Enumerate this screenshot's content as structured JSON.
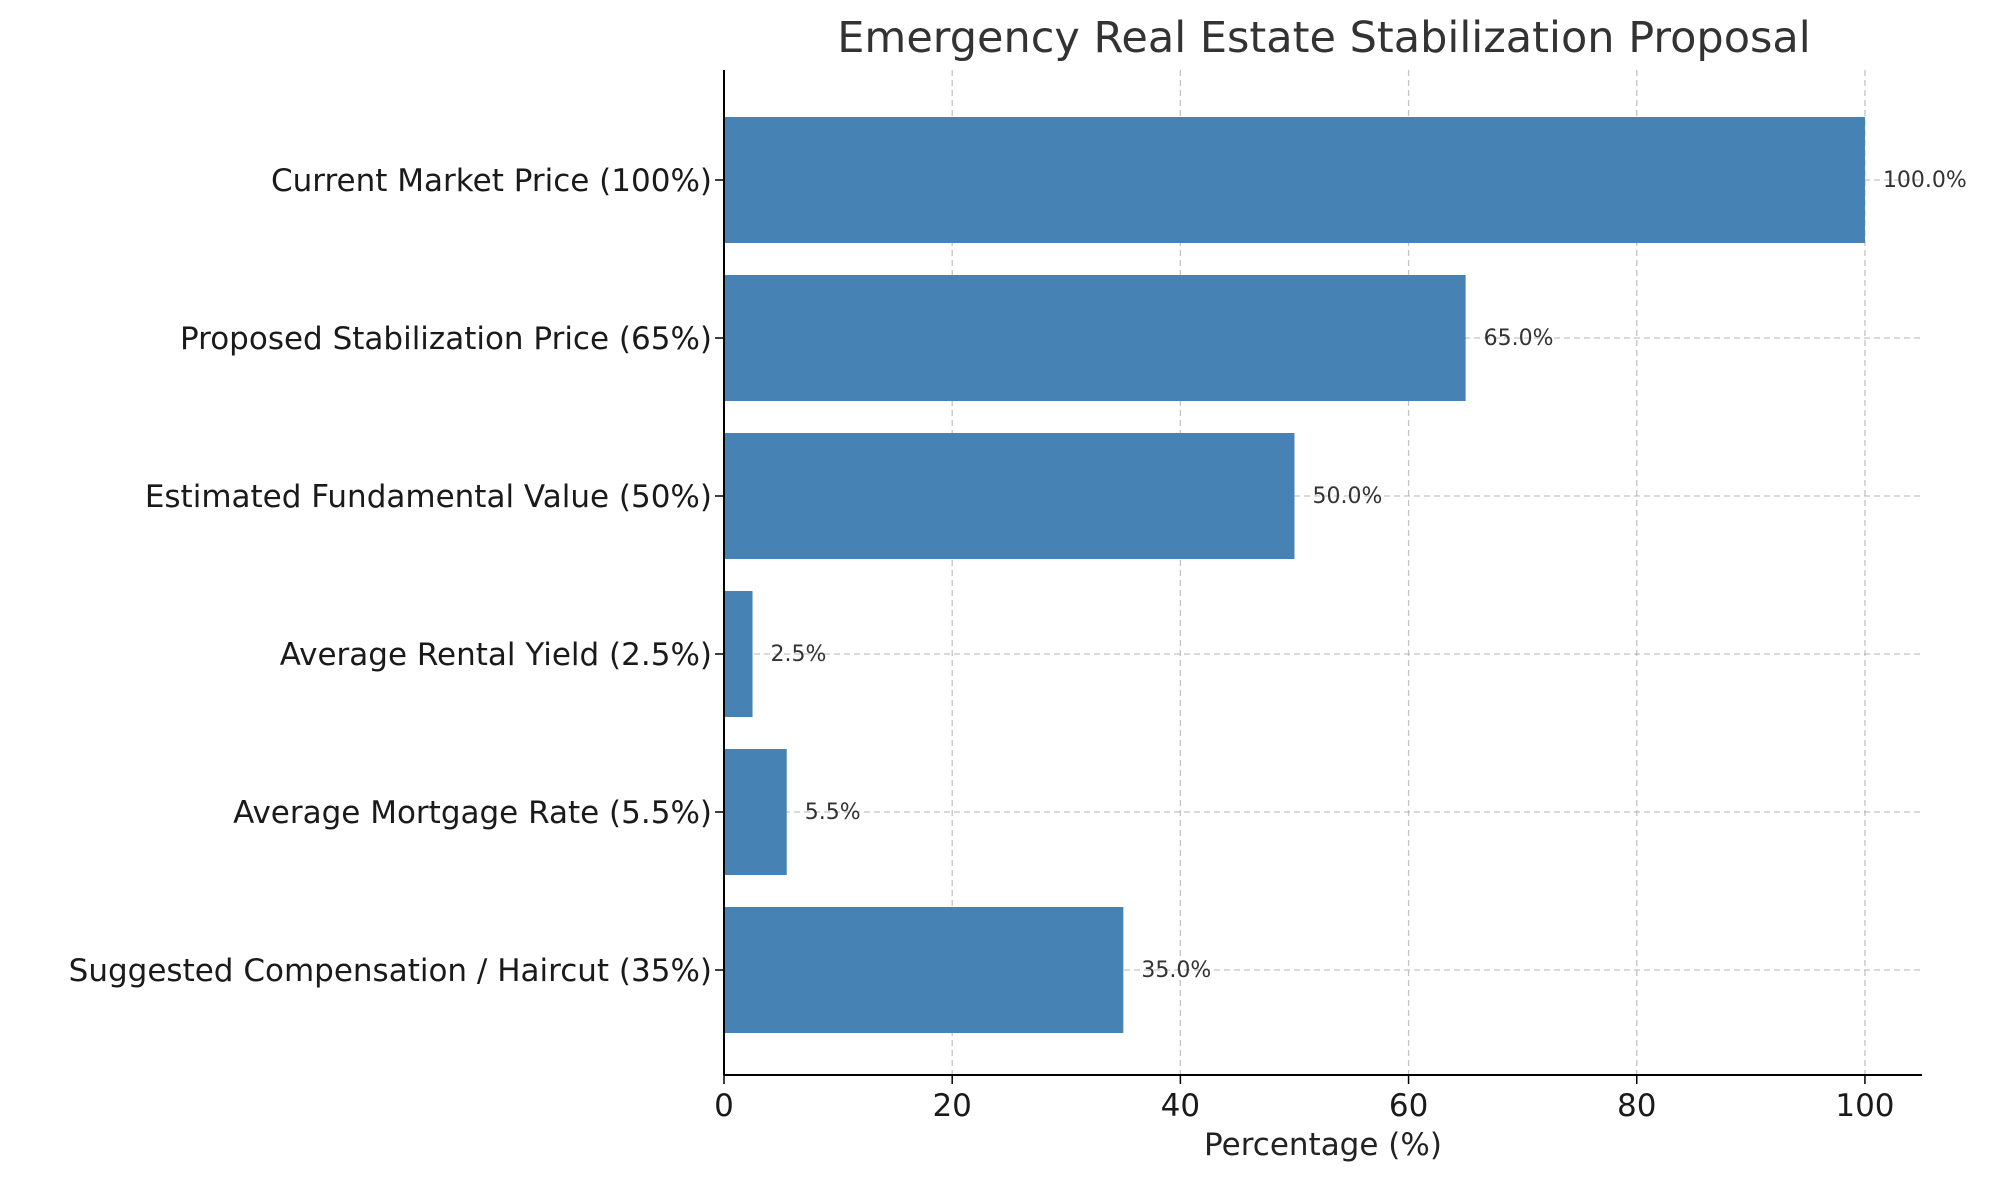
{
  "chart_data": {
    "type": "bar",
    "orientation": "horizontal",
    "title": "Emergency Real Estate Stabilization Proposal",
    "xlabel": "Percentage (%)",
    "ylabel": "",
    "xlim": [
      0,
      105
    ],
    "xticks": [
      0,
      20,
      40,
      60,
      80,
      100
    ],
    "grid": true,
    "bar_color": "#4682b4",
    "categories": [
      "Current Market Price (100%)",
      "Proposed Stabilization Price (65%)",
      "Estimated Fundamental Value (50%)",
      "Average Rental Yield (2.5%)",
      "Average Mortgage Rate (5.5%)",
      "Suggested Compensation / Haircut (35%)"
    ],
    "values": [
      100,
      65,
      50,
      2.5,
      5.5,
      35
    ],
    "value_labels": [
      "100.0%",
      "65.0%",
      "50.0%",
      "2.5%",
      "5.5%",
      "35.0%"
    ]
  }
}
